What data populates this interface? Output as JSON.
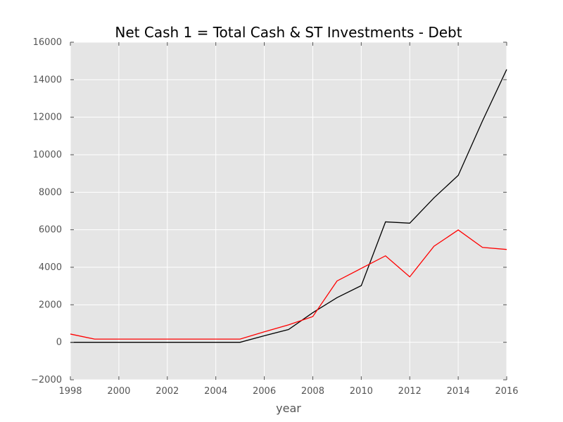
{
  "chart_data": {
    "type": "line",
    "title": "Net Cash 1 = Total Cash & ST Investments - Debt",
    "xlabel": "year",
    "ylabel": "",
    "xlim": [
      1998,
      2016
    ],
    "ylim": [
      -2000,
      16000
    ],
    "xticks": [
      1998,
      2000,
      2002,
      2004,
      2006,
      2008,
      2010,
      2012,
      2014,
      2016
    ],
    "yticks": [
      -2000,
      0,
      2000,
      4000,
      6000,
      8000,
      10000,
      12000,
      14000,
      16000
    ],
    "grid": true,
    "background": "#e5e5e5",
    "series": [
      {
        "color": "#000000",
        "x": [
          1998,
          1999,
          2000,
          2001,
          2002,
          2003,
          2004,
          2005,
          2006,
          2007,
          2008,
          2009,
          2010,
          2011,
          2012,
          2013,
          2014,
          2015,
          2016
        ],
        "values": [
          0,
          0,
          0,
          0,
          0,
          0,
          0,
          0,
          350,
          680,
          1580,
          2380,
          3020,
          6420,
          6350,
          7700,
          8900,
          11800,
          14550
        ]
      },
      {
        "color": "#ff0000",
        "x": [
          1998,
          1999,
          2000,
          2001,
          2002,
          2003,
          2004,
          2005,
          2006,
          2007,
          2008,
          2009,
          2010,
          2011,
          2012,
          2013,
          2014,
          2015,
          2016
        ],
        "values": [
          440,
          170,
          170,
          170,
          170,
          170,
          170,
          170,
          560,
          930,
          1370,
          3270,
          3940,
          4610,
          3490,
          5120,
          5990,
          5060,
          4950
        ]
      }
    ]
  }
}
